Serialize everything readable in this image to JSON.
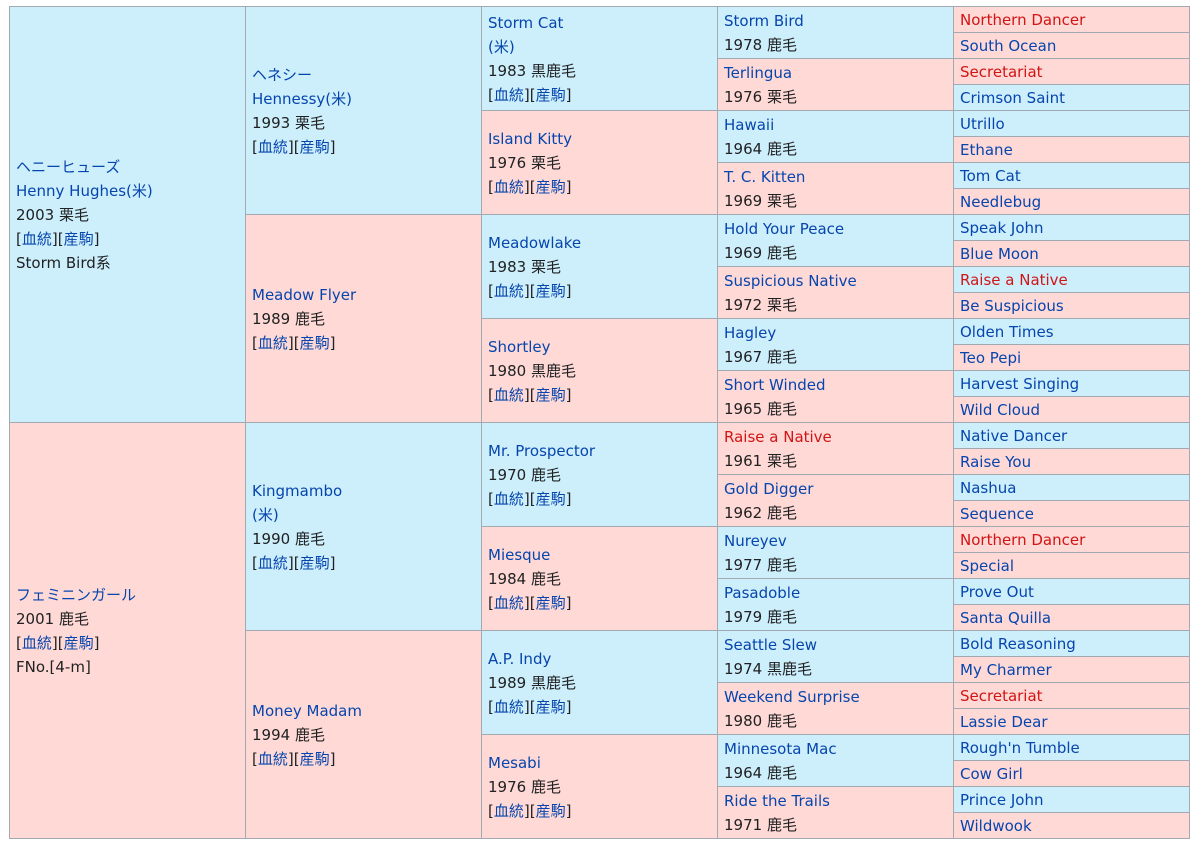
{
  "subject": {
    "name_ja": "ヘニーヒューズ",
    "name_en": "Henny Hughes(米)",
    "info": "2003 栗毛",
    "line": "Storm Bird系",
    "dam_name": "フェミニンガール",
    "dam_info": "2001 鹿毛",
    "family": "FNo.[4-m]"
  },
  "links": {
    "ketto": "血統",
    "sanku": "産駒"
  },
  "g2": [
    {
      "name": "ヘネシー",
      "name2": "Hennessy(米)",
      "info": "1993 栗毛"
    },
    {
      "name": "Meadow Flyer",
      "info": "1989 鹿毛"
    },
    {
      "name": "Kingmambo",
      "name2": "(米)",
      "info": "1990 鹿毛"
    },
    {
      "name": "Money Madam",
      "info": "1994 鹿毛"
    }
  ],
  "g3": [
    {
      "name": "Storm Cat",
      "name2": "(米)",
      "info": "1983 黒鹿毛"
    },
    {
      "name": "Island Kitty",
      "info": "1976 栗毛"
    },
    {
      "name": "Meadowlake",
      "info": "1983 栗毛"
    },
    {
      "name": "Shortley",
      "info": "1980 黒鹿毛"
    },
    {
      "name": "Mr. Prospector",
      "info": "1970 鹿毛"
    },
    {
      "name": "Miesque",
      "info": "1984 鹿毛"
    },
    {
      "name": "A.P. Indy",
      "info": "1989 黒鹿毛"
    },
    {
      "name": "Mesabi",
      "info": "1976 鹿毛"
    }
  ],
  "g4": [
    {
      "name": "Storm Bird",
      "info": "1978 鹿毛"
    },
    {
      "name": "Terlingua",
      "info": "1976 栗毛"
    },
    {
      "name": "Hawaii",
      "info": "1964 鹿毛"
    },
    {
      "name": "T. C. Kitten",
      "info": "1969 栗毛"
    },
    {
      "name": "Hold Your Peace",
      "info": "1969 鹿毛"
    },
    {
      "name": "Suspicious Native",
      "info": "1972 栗毛"
    },
    {
      "name": "Hagley",
      "info": "1967 鹿毛"
    },
    {
      "name": "Short Winded",
      "info": "1965 鹿毛"
    },
    {
      "name": "Raise a Native",
      "info": "1961 栗毛"
    },
    {
      "name": "Gold Digger",
      "info": "1962 鹿毛"
    },
    {
      "name": "Nureyev",
      "info": "1977 鹿毛"
    },
    {
      "name": "Pasadoble",
      "info": "1979 鹿毛"
    },
    {
      "name": "Seattle Slew",
      "info": "1974 黒鹿毛"
    },
    {
      "name": "Weekend Surprise",
      "info": "1980 鹿毛"
    },
    {
      "name": "Minnesota Mac",
      "info": "1964 鹿毛"
    },
    {
      "name": "Ride the Trails",
      "info": "1971 鹿毛"
    }
  ],
  "g5": [
    "Northern Dancer",
    "South Ocean",
    "Secretariat",
    "Crimson Saint",
    "Utrillo",
    "Ethane",
    "Tom Cat",
    "Needlebug",
    "Speak John",
    "Blue Moon",
    "Raise a Native",
    "Be Suspicious",
    "Olden Times",
    "Teo Pepi",
    "Harvest Singing",
    "Wild Cloud",
    "Native Dancer",
    "Raise You",
    "Nashua",
    "Sequence",
    "Northern Dancer",
    "Special",
    "Prove Out",
    "Santa Quilla",
    "Bold Reasoning",
    "My Charmer",
    "Secretariat",
    "Lassie Dear",
    "Rough'n Tumble",
    "Cow Girl",
    "Prince John",
    "Wildwook"
  ],
  "colors": {
    "sire_bg": "#cdeffc",
    "dam_bg": "#ffd9d6",
    "link": "#0645ad",
    "inbred_link": "#d11515"
  }
}
